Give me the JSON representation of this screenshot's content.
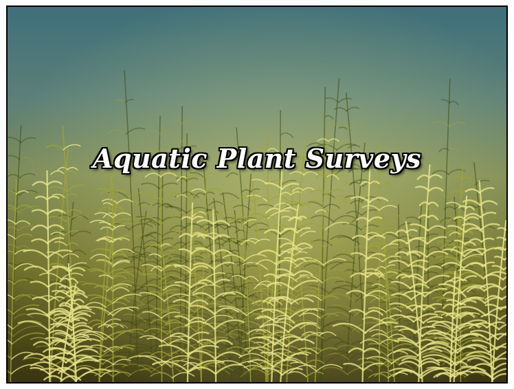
{
  "slide": {
    "title": "Aquatic Plant Surveys",
    "photo": {
      "icon": "underwater-plants-image",
      "water_color_top": "#4d7f86",
      "water_color_mid": "#6f7f52",
      "plant_color_light": "#e8e58a",
      "plant_color_mid": "#9fa23a",
      "plant_color_dark": "#3e4a14",
      "floor_color": "#3a3a10"
    }
  }
}
